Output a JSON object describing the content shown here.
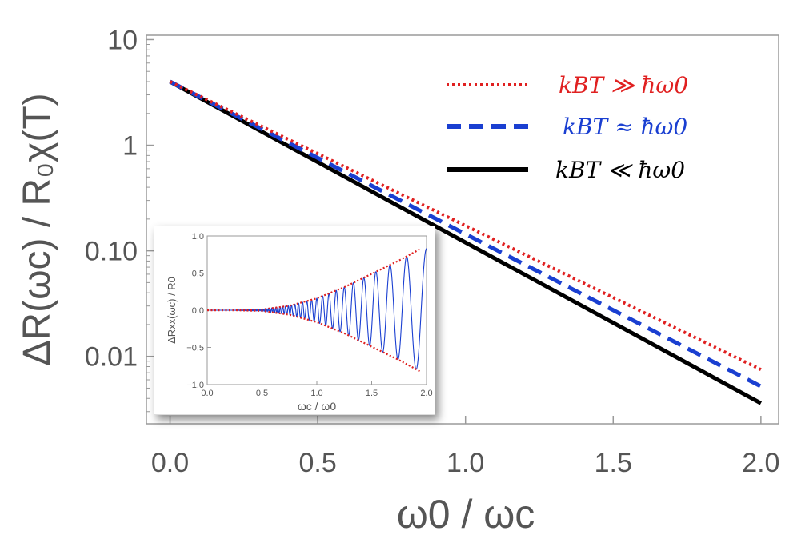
{
  "chart_data": [
    {
      "type": "line",
      "title": "",
      "xlabel": "ω0 / ωc",
      "ylabel": "ΔR(ωc) / R₀χ(T)",
      "xscale": "linear",
      "yscale": "log",
      "xlim": [
        -0.08,
        2.06
      ],
      "ylim": [
        0.0023,
        11
      ],
      "x_ticks": [
        {
          "value": 0.0,
          "label": "0.0"
        },
        {
          "value": 0.5,
          "label": "0.5"
        },
        {
          "value": 1.0,
          "label": "1.0"
        },
        {
          "value": 1.5,
          "label": "1.5"
        },
        {
          "value": 2.0,
          "label": "2.0"
        }
      ],
      "y_ticks": [
        {
          "value": 10,
          "label": "10"
        },
        {
          "value": 1,
          "label": "1"
        },
        {
          "value": 0.1,
          "label": "0.10"
        },
        {
          "value": 0.01,
          "label": "0.01"
        }
      ],
      "legend_position": "top-right",
      "series": [
        {
          "name": "k_B T ≫ ħω₀",
          "legend_label": "kBT ≫ ħω0",
          "color": "#e02020",
          "style": "dotted",
          "x": [
            0.0,
            2.0
          ],
          "y": [
            4.0,
            0.0075
          ]
        },
        {
          "name": "k_B T ≈ ħω₀",
          "legend_label": "kBT ≈ ħω0",
          "color": "#1a3fd1",
          "style": "dashed",
          "x": [
            0.0,
            2.0
          ],
          "y": [
            4.0,
            0.0052
          ]
        },
        {
          "name": "k_B T ≪ ħω₀",
          "legend_label": "kBT ≪ ħω0",
          "color": "#000000",
          "style": "solid",
          "x": [
            0.0,
            2.0
          ],
          "y": [
            4.0,
            0.0036
          ]
        }
      ]
    },
    {
      "type": "line",
      "role": "inset",
      "title": "",
      "xlabel": "ωc / ω0",
      "ylabel": "ΔRxx(ωc) / R0",
      "xlim": [
        0.0,
        2.0
      ],
      "ylim": [
        -1.0,
        1.0
      ],
      "x_ticks": [
        {
          "value": 0.0,
          "label": "0.0"
        },
        {
          "value": 0.5,
          "label": "0.5"
        },
        {
          "value": 1.0,
          "label": "1.0"
        },
        {
          "value": 1.5,
          "label": "1.5"
        },
        {
          "value": 2.0,
          "label": "2.0"
        }
      ],
      "y_ticks": [
        {
          "value": 1.0,
          "label": "1.0"
        },
        {
          "value": 0.5,
          "label": "0.5"
        },
        {
          "value": 0.0,
          "label": "0.0"
        },
        {
          "value": -0.5,
          "label": "−0.5"
        },
        {
          "value": -1.0,
          "label": "−1.0"
        }
      ],
      "series": [
        {
          "name": "envelope upper",
          "color": "#e02020",
          "style": "dotted",
          "x": [
            0.0,
            0.25,
            0.5,
            0.75,
            1.0,
            1.25,
            1.5,
            1.75,
            1.95
          ],
          "y": [
            0.0,
            0.0,
            0.01,
            0.06,
            0.16,
            0.31,
            0.49,
            0.67,
            0.83
          ]
        },
        {
          "name": "envelope lower",
          "color": "#e02020",
          "style": "dotted",
          "x": [
            0.0,
            0.25,
            0.5,
            0.75,
            1.0,
            1.25,
            1.5,
            1.75,
            1.95
          ],
          "y": [
            0.0,
            0.0,
            -0.01,
            -0.06,
            -0.16,
            -0.31,
            -0.49,
            -0.67,
            -0.83
          ]
        },
        {
          "name": "oscillation",
          "color": "#1a3fd1",
          "style": "solid",
          "x": [
            0.0,
            0.5,
            0.75,
            1.0,
            1.25,
            1.5,
            1.75,
            1.95,
            2.0
          ],
          "y": [
            0.0,
            0.0,
            0.06,
            -0.16,
            0.31,
            -0.49,
            0.67,
            0.83,
            0.22
          ]
        }
      ]
    }
  ]
}
